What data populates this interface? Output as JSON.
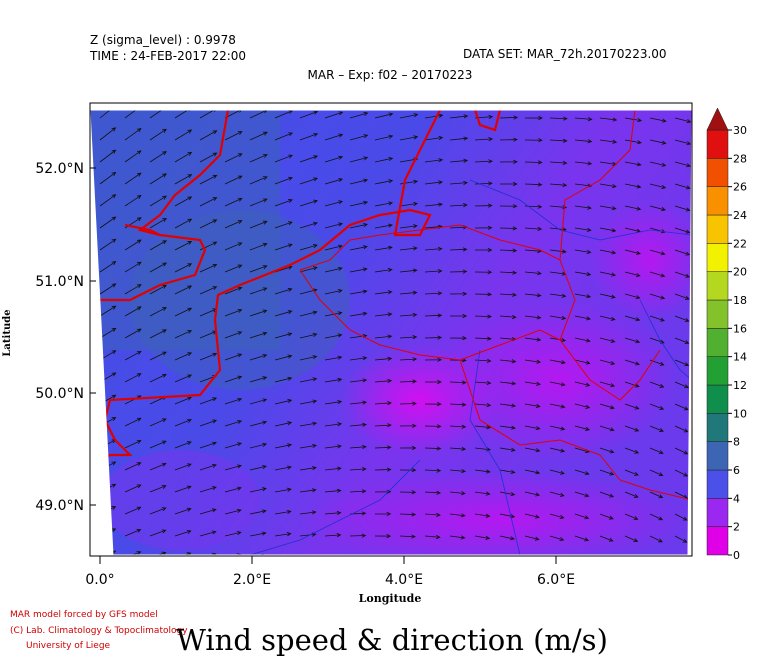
{
  "header": {
    "level": "Z (sigma_level) : 0.9978",
    "time": "TIME : 24-FEB-2017 22:00",
    "dataset": "DATA SET: MAR_72h.20170223.00",
    "experiment": "MAR – Exp: f02 – 20170223"
  },
  "map": {
    "y_axis_label": "Latitude",
    "x_axis_label": "Longitude",
    "lat_ticks": [
      "52.0°N",
      "51.0°N",
      "50.0°N",
      "49.0°N"
    ],
    "lon_ticks": [
      "0.0°",
      "2.0°E",
      "4.0°E",
      "6.0°E"
    ]
  },
  "colorbar": {
    "ticks": [
      0,
      2,
      4,
      6,
      8,
      10,
      12,
      14,
      16,
      18,
      20,
      22,
      24,
      26,
      28,
      30
    ],
    "colors": [
      "#e000e8",
      "#9a28f0",
      "#4a50e8",
      "#3c66b4",
      "#20787a",
      "#0f8e4c",
      "#22a034",
      "#52b030",
      "#84c22c",
      "#b4d820",
      "#f2f200",
      "#f8c400",
      "#f89000",
      "#f05000",
      "#e01010"
    ],
    "extend_color": "#a01010"
  },
  "footer": {
    "credit1": "MAR model forced by GFS model",
    "credit2": "(C) Lab. Climatology & Topoclimatology",
    "credit3": "University of Liege",
    "title": "Wind speed & direction (m/s)"
  }
}
